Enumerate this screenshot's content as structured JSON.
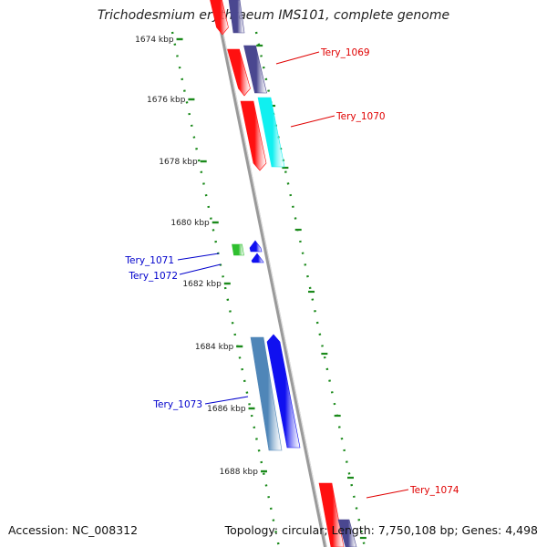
{
  "title": "Trichodesmium erythraeum IMS101, complete genome",
  "accession": "Accession: NC_008312",
  "topology": "Topology: circular; Length: 7,750,108 bp; Genes: 4,498",
  "colors": {
    "backbone": "#8c8c8c",
    "ruler": "#1b8a1b",
    "red": "#ff1010",
    "navy": "#4a4790",
    "cyan": "#10f0f0",
    "green": "#2fbf2f",
    "blue": "#1010f0",
    "steel": "#4f86b8",
    "label_red": "#e00000",
    "label_blue": "#0000cc"
  },
  "ruler_ticks": [
    {
      "label": "1674 kbp"
    },
    {
      "label": "1676 kbp"
    },
    {
      "label": "1678 kbp"
    },
    {
      "label": "1680 kbp"
    },
    {
      "label": "1682 kbp"
    },
    {
      "label": "1684 kbp"
    },
    {
      "label": "1686 kbp"
    },
    {
      "label": "1688 kbp"
    }
  ],
  "gene_labels": [
    {
      "text": "Tery_1069",
      "color": "label_red"
    },
    {
      "text": "Tery_1070",
      "color": "label_red"
    },
    {
      "text": "Tery_1071",
      "color": "label_blue"
    },
    {
      "text": "Tery_1072",
      "color": "label_blue"
    },
    {
      "text": "Tery_1073",
      "color": "label_blue"
    },
    {
      "text": "Tery_1074",
      "color": "label_red"
    }
  ]
}
